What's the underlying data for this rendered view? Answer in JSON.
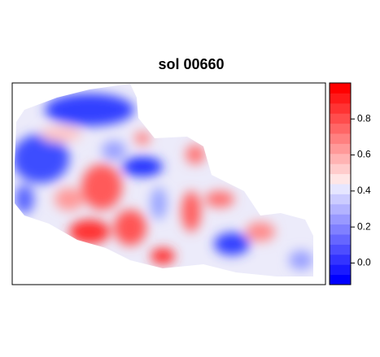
{
  "title": "sol 00660",
  "colorbar": {
    "lim": [
      -0.12,
      1.0
    ],
    "ticks": [
      {
        "value": 0,
        "label": "0.0"
      },
      0.2,
      0.4,
      0.6,
      0.8
    ],
    "colors": [
      "#0000ff",
      "#1a1aff",
      "#3333ff",
      "#4d4dff",
      "#6666ff",
      "#8080ff",
      "#9999ff",
      "#b3b3ff",
      "#ccccff",
      "#e6e6ff",
      "#ffe6e6",
      "#ffcccc",
      "#ffb3b3",
      "#ff9999",
      "#ff8080",
      "#ff6666",
      "#ff4d4d",
      "#ff3333",
      "#ff1a1a",
      "#ff0000"
    ]
  }
}
